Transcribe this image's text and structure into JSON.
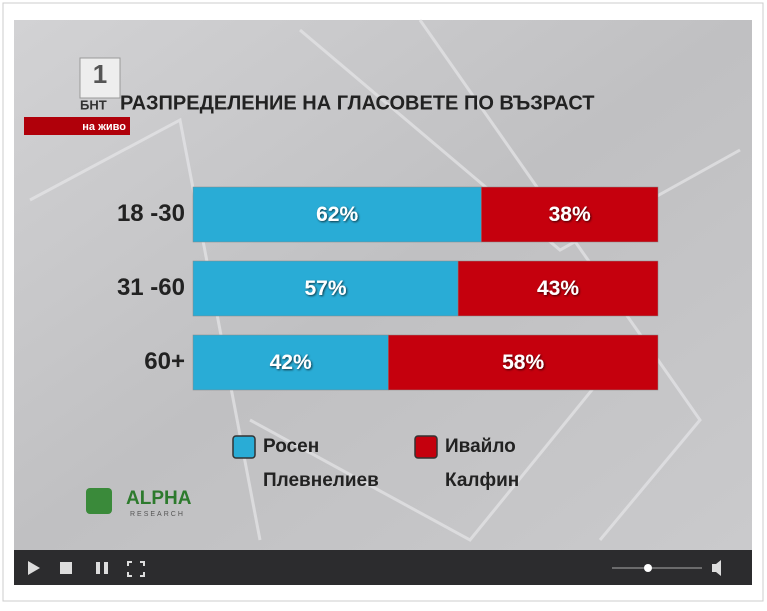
{
  "chart_data": {
    "type": "stacked_bar",
    "orientation": "horizontal",
    "title": "РАЗПРЕДЕЛЕНИЕ НА ГЛАСОВЕТЕ ПО ВЪЗРАСТ",
    "categories": [
      "18 -30",
      "31 -60",
      "60+"
    ],
    "series": [
      {
        "name": "Росен Плевнелиев",
        "color": "#29acd6",
        "values": [
          62,
          57,
          42
        ],
        "value_labels": [
          "62%",
          "57%",
          "42%"
        ]
      },
      {
        "name": "Ивайло Калфин",
        "color": "#c5000d",
        "values": [
          38,
          43,
          58
        ],
        "value_labels": [
          "38%",
          "43%",
          "58%"
        ]
      }
    ],
    "xlim": [
      0,
      100
    ]
  },
  "overlay": {
    "channel_number": "1",
    "channel_name": "БНТ",
    "live_label": "на живо",
    "source_name": "ALPHA",
    "source_subtitle": "RESEARCH"
  }
}
